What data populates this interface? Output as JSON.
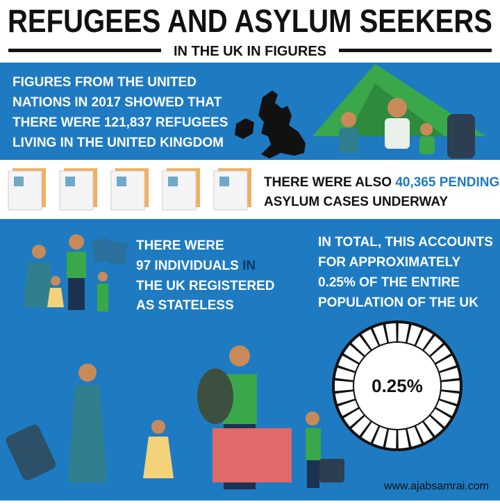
{
  "header": {
    "title": "REFUGEES AND ASYLUM SEEKERS",
    "subtitle": "IN THE UK IN FIGURES"
  },
  "refugees": {
    "lines": [
      [
        "FIGURES FROM THE UNITED"
      ],
      [
        "NATIONS IN 2017 SHOWED THAT"
      ],
      [
        "THERE WERE ",
        "121,837",
        " REFUGEES"
      ],
      [
        "LIVING IN THE UNITED KINGDOM"
      ]
    ]
  },
  "pending": {
    "lines": [
      [
        "THERE WERE ALSO ",
        "40,365 PENDING"
      ],
      [
        "ASYLUM CASES UNDERWAY"
      ]
    ]
  },
  "stateless": {
    "lines": [
      [
        "THERE WERE"
      ],
      [
        "97 INDIVIDUALS",
        " IN"
      ],
      [
        "THE UK REGISTERED"
      ],
      [
        "AS STATELESS"
      ]
    ]
  },
  "total": {
    "lines": [
      [
        "IN TOTAL, THIS ACCOUNTS"
      ],
      [
        "FOR APPROXIMATELY"
      ],
      [
        "0.25% OF THE ENTIRE"
      ],
      [
        "POPULATION OF THE UK"
      ]
    ],
    "ring_label": "0.25%"
  },
  "footer": {
    "website": "www.ajabsamrai.com"
  }
}
